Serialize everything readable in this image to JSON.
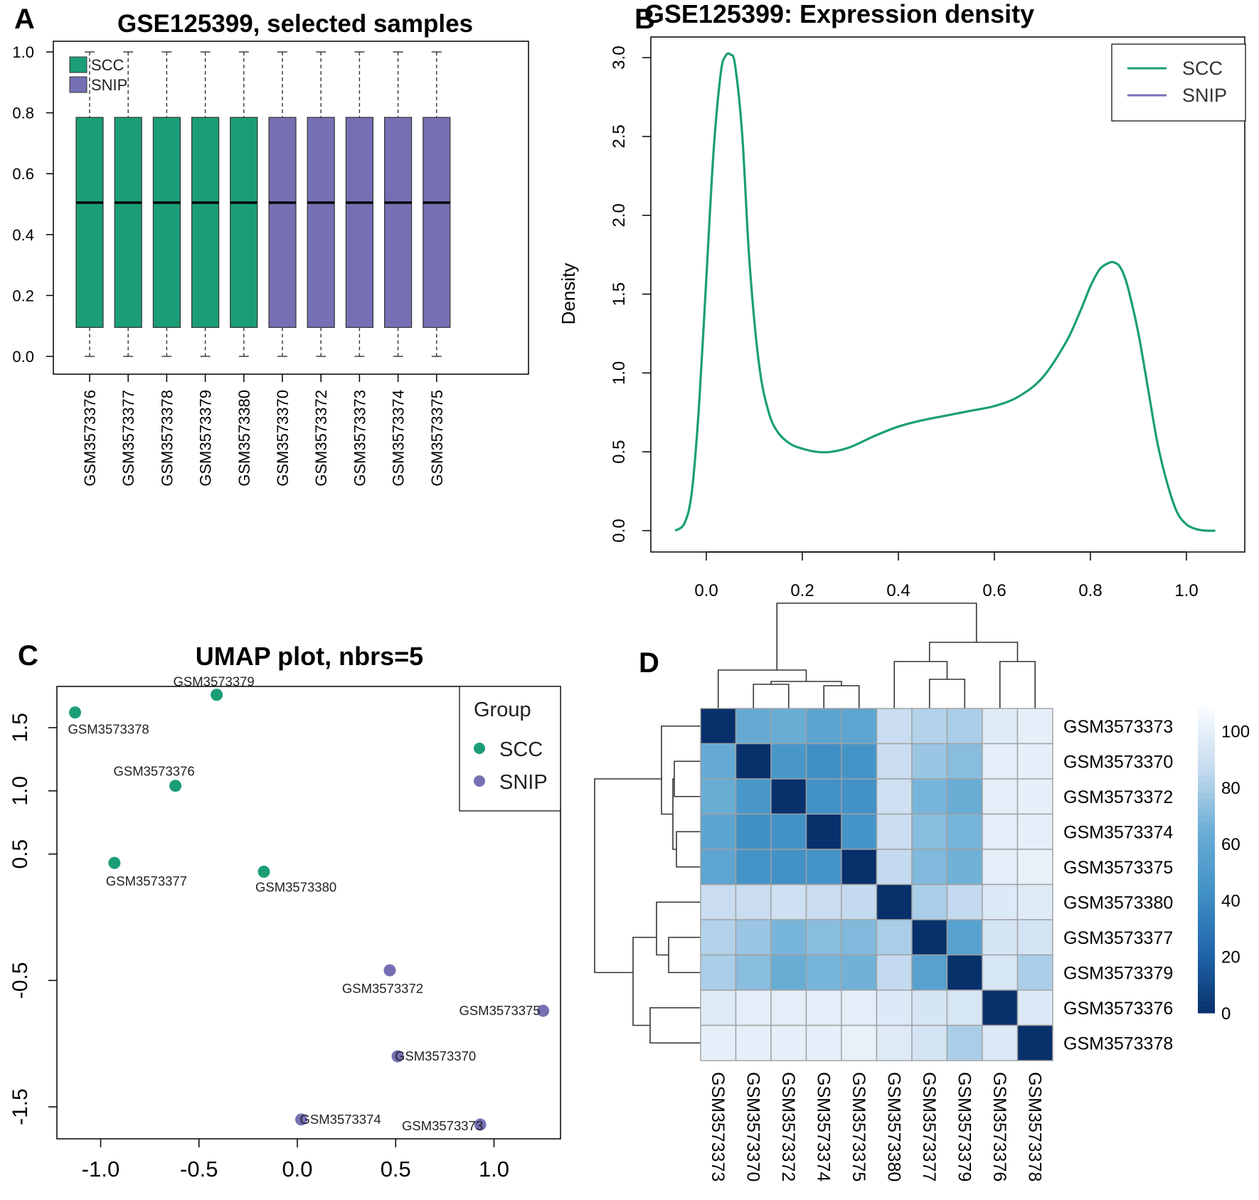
{
  "figure": {
    "colors": {
      "scc": "#1b9e77",
      "snip": "#7570b3",
      "heat_low": "#08306b",
      "heat_high": "#f7fbff"
    }
  },
  "chart_data": [
    {
      "panel": "A",
      "type": "box",
      "title": "GSE125399, selected samples",
      "categories": [
        "GSM3573376",
        "GSM3573377",
        "GSM3573378",
        "GSM3573379",
        "GSM3573380",
        "GSM3573370",
        "GSM3573372",
        "GSM3573373",
        "GSM3573374",
        "GSM3573375"
      ],
      "groups": [
        "SCC",
        "SCC",
        "SCC",
        "SCC",
        "SCC",
        "SNIP",
        "SNIP",
        "SNIP",
        "SNIP",
        "SNIP"
      ],
      "stats": {
        "min": 0.0,
        "q1": 0.095,
        "median": 0.505,
        "q3": 0.785,
        "max": 1.0
      },
      "ylim": [
        0,
        1
      ],
      "yticks": [
        "0.0",
        "0.2",
        "0.4",
        "0.6",
        "0.8",
        "1.0"
      ],
      "legend": [
        "SCC",
        "SNIP"
      ],
      "legend_position": "top-left"
    },
    {
      "panel": "B",
      "type": "line",
      "title": "GSE125399: Expression density",
      "ylabel": "Density",
      "xlim": [
        -0.07,
        1.07
      ],
      "ylim": [
        0,
        3.1
      ],
      "xticks": [
        "0.0",
        "0.2",
        "0.4",
        "0.6",
        "0.8",
        "1.0"
      ],
      "yticks": [
        "0.0",
        "0.5",
        "1.0",
        "1.5",
        "2.0",
        "2.5",
        "3.0"
      ],
      "legend": [
        "SCC",
        "SNIP"
      ],
      "legend_position": "top-right",
      "series": [
        {
          "name": "SCC",
          "x": [
            -0.065,
            -0.045,
            -0.03,
            -0.015,
            0.0,
            0.015,
            0.03,
            0.04,
            0.05,
            0.06,
            0.075,
            0.09,
            0.11,
            0.13,
            0.15,
            0.175,
            0.2,
            0.23,
            0.26,
            0.3,
            0.35,
            0.4,
            0.45,
            0.5,
            0.55,
            0.6,
            0.65,
            0.7,
            0.75,
            0.78,
            0.8,
            0.82,
            0.84,
            0.85,
            0.86,
            0.87,
            0.88,
            0.9,
            0.92,
            0.94,
            0.96,
            0.98,
            1.0,
            1.02,
            1.04,
            1.06
          ],
          "y": [
            0.0,
            0.05,
            0.25,
            0.8,
            1.6,
            2.4,
            2.9,
            3.01,
            3.02,
            2.95,
            2.5,
            1.7,
            1.05,
            0.75,
            0.62,
            0.55,
            0.52,
            0.5,
            0.5,
            0.53,
            0.6,
            0.66,
            0.7,
            0.73,
            0.76,
            0.79,
            0.85,
            0.97,
            1.2,
            1.4,
            1.55,
            1.66,
            1.7,
            1.7,
            1.68,
            1.62,
            1.52,
            1.25,
            0.9,
            0.55,
            0.3,
            0.12,
            0.04,
            0.01,
            0.0,
            0.0
          ]
        }
      ]
    },
    {
      "panel": "C",
      "type": "scatter",
      "title": "UMAP plot, nbrs=5",
      "xlim": [
        -1.22,
        1.32
      ],
      "ylim": [
        -1.72,
        1.92
      ],
      "xticks": [
        "-1.0",
        "-0.5",
        "0.0",
        "0.5",
        "1.0"
      ],
      "yticks": [
        "-1.5",
        "-0.5",
        "0.5",
        "1.0",
        "1.5"
      ],
      "legend_title": "Group",
      "legend": [
        "SCC",
        "SNIP"
      ],
      "legend_position": "top-right",
      "points": [
        {
          "label": "GSM3573379",
          "group": "SCC",
          "x": -0.41,
          "y": 1.76
        },
        {
          "label": "GSM3573378",
          "group": "SCC",
          "x": -1.13,
          "y": 1.62
        },
        {
          "label": "GSM3573376",
          "group": "SCC",
          "x": -0.62,
          "y": 1.04
        },
        {
          "label": "GSM3573377",
          "group": "SCC",
          "x": -0.93,
          "y": 0.43
        },
        {
          "label": "GSM3573380",
          "group": "SCC",
          "x": -0.17,
          "y": 0.36
        },
        {
          "label": "GSM3573372",
          "group": "SNIP",
          "x": 0.47,
          "y": -0.42
        },
        {
          "label": "GSM3573375",
          "group": "SNIP",
          "x": 1.25,
          "y": -0.74
        },
        {
          "label": "GSM3573370",
          "group": "SNIP",
          "x": 0.51,
          "y": -1.1
        },
        {
          "label": "GSM3573374",
          "group": "SNIP",
          "x": 0.02,
          "y": -1.6
        },
        {
          "label": "GSM3573373",
          "group": "SNIP",
          "x": 0.93,
          "y": -1.64
        }
      ]
    },
    {
      "panel": "D",
      "type": "heatmap",
      "labels": [
        "GSM3573373",
        "GSM3573370",
        "GSM3573372",
        "GSM3573374",
        "GSM3573375",
        "GSM3573380",
        "GSM3573377",
        "GSM3573379",
        "GSM3573376",
        "GSM3573378"
      ],
      "colorbar_ticks": [
        "0",
        "20",
        "40",
        "60",
        "80",
        "100"
      ],
      "vmin": 0,
      "vmax": 108,
      "values": [
        [
          0,
          62,
          64,
          57,
          58,
          88,
          82,
          80,
          97,
          100
        ],
        [
          62,
          0,
          47,
          42,
          45,
          88,
          76,
          72,
          99,
          100
        ],
        [
          64,
          47,
          0,
          43,
          43,
          90,
          68,
          64,
          99,
          100
        ],
        [
          57,
          42,
          43,
          0,
          45,
          88,
          72,
          68,
          99,
          100
        ],
        [
          58,
          45,
          43,
          45,
          0,
          86,
          70,
          66,
          99,
          101
        ],
        [
          88,
          88,
          90,
          88,
          86,
          0,
          80,
          86,
          96,
          97
        ],
        [
          82,
          76,
          68,
          72,
          70,
          80,
          0,
          55,
          93,
          92
        ],
        [
          80,
          72,
          64,
          68,
          66,
          86,
          55,
          0,
          94,
          80
        ],
        [
          97,
          99,
          99,
          99,
          99,
          96,
          93,
          94,
          0,
          96
        ],
        [
          100,
          100,
          100,
          100,
          101,
          97,
          92,
          80,
          96,
          0
        ]
      ]
    }
  ],
  "panels": {
    "A": {
      "letter": "A"
    },
    "B": {
      "letter": "B"
    },
    "C": {
      "letter": "C"
    },
    "D": {
      "letter": "D"
    }
  }
}
